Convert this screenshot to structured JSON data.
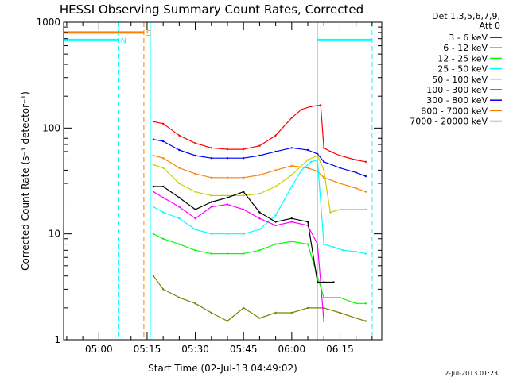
{
  "chart_data": {
    "type": "line",
    "title": "HESSI Observing Summary Count Rates, Corrected",
    "xlabel": "Start Time (02-Jul-13 04:49:02)",
    "ylabel": "Corrected Count Rate (s⁻¹ detector⁻¹)",
    "y_scale": "log",
    "ylim": [
      1,
      1000
    ],
    "xlim": [
      "04:49:02",
      "06:28:00"
    ],
    "x_tick_labels": [
      "05:00",
      "05:15",
      "05:30",
      "05:45",
      "06:00",
      "06:15"
    ],
    "y_tick_labels": [
      "1",
      "10",
      "100",
      "1000"
    ],
    "legend_header": [
      "Det 1,3,5,6,7,9,",
      "Att 0"
    ],
    "legend_position": "right",
    "footer_date": "2-Jul-2013 01:23",
    "series": [
      {
        "name": "3 - 6 keV",
        "color": "#000000",
        "x": [
          "05:17",
          "05:20",
          "05:25",
          "05:30",
          "05:35",
          "05:40",
          "05:45",
          "05:50",
          "05:55",
          "06:00",
          "06:05",
          "06:08",
          "06:10",
          "06:13"
        ],
        "y": [
          28,
          28,
          22,
          17,
          20,
          22,
          25,
          16,
          13,
          14,
          13,
          3.5,
          3.5,
          3.5
        ]
      },
      {
        "name": "6 - 12 keV",
        "color": "#ff00ff",
        "x": [
          "05:17",
          "05:20",
          "05:25",
          "05:30",
          "05:35",
          "05:40",
          "05:45",
          "05:50",
          "05:55",
          "06:00",
          "06:05",
          "06:08",
          "06:10"
        ],
        "y": [
          25,
          22,
          18,
          14,
          18,
          19,
          17,
          14,
          12,
          13,
          12,
          8,
          1.5
        ]
      },
      {
        "name": "12 - 25 keV",
        "color": "#00ff00",
        "x": [
          "05:17",
          "05:20",
          "05:25",
          "05:30",
          "05:35",
          "05:40",
          "05:45",
          "05:50",
          "05:55",
          "06:00",
          "06:05",
          "06:10",
          "06:15",
          "06:20",
          "06:23"
        ],
        "y": [
          10,
          9,
          8,
          7,
          6.5,
          6.5,
          6.5,
          7,
          8,
          8.5,
          8,
          2.5,
          2.5,
          2.2,
          2.2
        ]
      },
      {
        "name": "25 - 50 keV",
        "color": "#00ffff",
        "x": [
          "05:17",
          "05:20",
          "05:25",
          "05:30",
          "05:35",
          "05:40",
          "05:45",
          "05:50",
          "05:55",
          "06:00",
          "06:03",
          "06:06",
          "06:08",
          "06:10",
          "06:13",
          "06:16",
          "06:20",
          "06:23"
        ],
        "y": [
          18,
          16,
          14,
          11,
          10,
          10,
          10,
          11,
          15,
          28,
          40,
          48,
          50,
          8,
          7.5,
          7,
          6.8,
          6.5
        ]
      },
      {
        "name": "50 - 100 keV",
        "color": "#cccc00",
        "x": [
          "05:17",
          "05:20",
          "05:25",
          "05:30",
          "05:35",
          "05:40",
          "05:45",
          "05:50",
          "05:55",
          "06:00",
          "06:05",
          "06:08",
          "06:10",
          "06:12",
          "06:15",
          "06:20",
          "06:23"
        ],
        "y": [
          45,
          42,
          30,
          25,
          23,
          23,
          23,
          24,
          28,
          36,
          50,
          55,
          40,
          16,
          17,
          17,
          17
        ]
      },
      {
        "name": "100 - 300 keV",
        "color": "#ff0000",
        "x": [
          "05:17",
          "05:20",
          "05:25",
          "05:30",
          "05:35",
          "05:40",
          "05:45",
          "05:50",
          "05:55",
          "06:00",
          "06:03",
          "06:06",
          "06:09",
          "06:10",
          "06:12",
          "06:15",
          "06:20",
          "06:23"
        ],
        "y": [
          115,
          110,
          85,
          72,
          65,
          63,
          63,
          68,
          85,
          125,
          150,
          160,
          165,
          65,
          60,
          55,
          50,
          48
        ]
      },
      {
        "name": "300 - 800 keV",
        "color": "#0000ff",
        "x": [
          "05:17",
          "05:20",
          "05:25",
          "05:30",
          "05:35",
          "05:40",
          "05:45",
          "05:50",
          "05:55",
          "06:00",
          "06:05",
          "06:08",
          "06:10",
          "06:15",
          "06:20",
          "06:23"
        ],
        "y": [
          78,
          75,
          62,
          55,
          52,
          52,
          52,
          55,
          60,
          65,
          62,
          57,
          48,
          42,
          38,
          35
        ]
      },
      {
        "name": "800 - 7000 keV",
        "color": "#ff8000",
        "x": [
          "05:17",
          "05:20",
          "05:25",
          "05:30",
          "05:35",
          "05:40",
          "05:45",
          "05:50",
          "05:55",
          "06:00",
          "06:05",
          "06:08",
          "06:10",
          "06:15",
          "06:20",
          "06:23"
        ],
        "y": [
          55,
          52,
          42,
          37,
          34,
          34,
          34,
          36,
          40,
          44,
          42,
          39,
          34,
          30,
          27,
          25
        ]
      },
      {
        "name": "7000 - 20000 keV",
        "color": "#808000",
        "x": [
          "05:17",
          "05:20",
          "05:25",
          "05:30",
          "05:35",
          "05:40",
          "05:45",
          "05:50",
          "05:55",
          "06:00",
          "06:05",
          "06:10",
          "06:15",
          "06:20",
          "06:23"
        ],
        "y": [
          4,
          3,
          2.5,
          2.2,
          1.8,
          1.5,
          2,
          1.6,
          1.8,
          1.8,
          2,
          2,
          1.8,
          1.6,
          1.5
        ]
      }
    ],
    "flags": [
      {
        "label": "S",
        "color": "#ff8000",
        "value": 800,
        "x_start": "04:49:02",
        "x_end": "05:14:00"
      },
      {
        "label": "N",
        "color": "#00ffff",
        "value": 680,
        "x_start": "04:49:02",
        "x_end": "05:06:00"
      },
      {
        "label": "",
        "color": "#00ffff",
        "value": 680,
        "x_start": "06:08:00",
        "x_end": "06:25:00"
      }
    ],
    "vertical_markers": [
      {
        "color": "#00ffff",
        "style": "dashed",
        "x": "05:06:00"
      },
      {
        "color": "#ff8000",
        "style": "dashed",
        "x": "05:14:00"
      },
      {
        "color": "#00ffff",
        "style": "solid",
        "x": "05:16:00"
      },
      {
        "color": "#00ffff",
        "style": "solid",
        "x": "06:08:00"
      },
      {
        "color": "#00ffff",
        "style": "dashed",
        "x": "06:25:00"
      }
    ]
  }
}
